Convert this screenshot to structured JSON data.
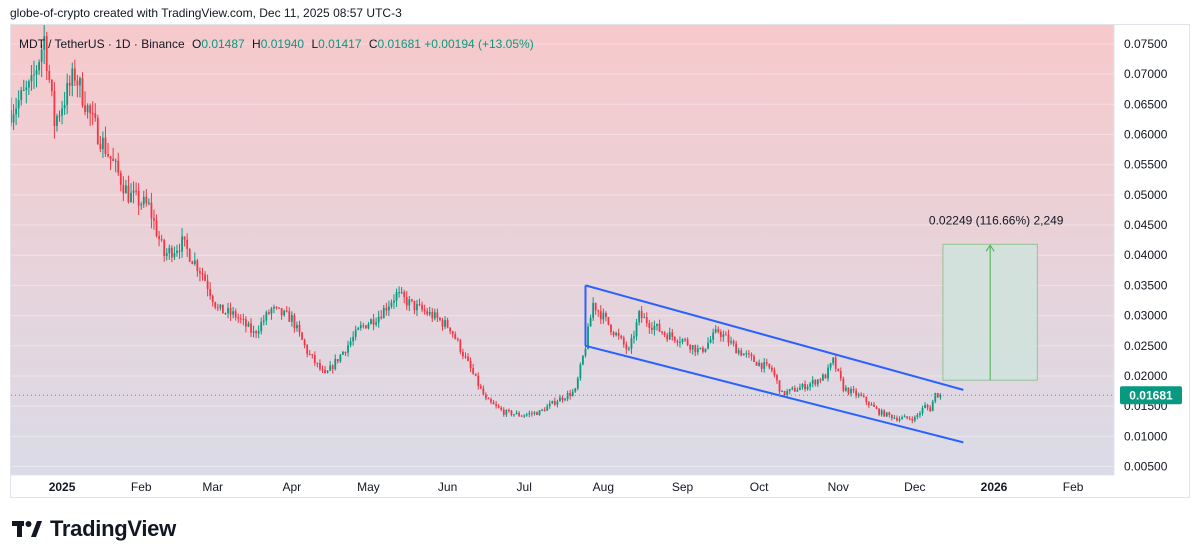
{
  "header": {
    "note": "globe-of-crypto created with TradingView.com, Dec 11, 2025 08:57 UTC-3"
  },
  "legend": {
    "symbol": "MDT / TetherUS · 1D · Binance",
    "o_label": "O",
    "o_value": "0.01487",
    "h_label": "H",
    "h_value": "0.01940",
    "l_label": "L",
    "l_value": "0.01417",
    "c_label": "C",
    "c_value": "0.01681",
    "change": "+0.00194 (+13.05%)"
  },
  "last_price_label": "0.01681",
  "measure_label": "0.02249 (116.66%) 2,249",
  "footer": {
    "brand": "TradingView"
  },
  "colors": {
    "up": "#089981",
    "down": "#f23645",
    "channel": "#2962ff",
    "target_fill": "#cfe3dc",
    "target_line": "#4caf50",
    "bg_top": "#f7c9cb",
    "bg_bottom": "#dadbe7"
  },
  "chart_data": {
    "type": "candlestick",
    "title": "MDT / TetherUS · 1D · Binance",
    "y_axis_ticks": [
      "0.07500",
      "0.07000",
      "0.06500",
      "0.06000",
      "0.05500",
      "0.05000",
      "0.04500",
      "0.04000",
      "0.03500",
      "0.03000",
      "0.02500",
      "0.02000",
      "0.01500",
      "0.01000",
      "0.00500"
    ],
    "ylim": [
      0.0036,
      0.0768
    ],
    "x_axis_ticks": [
      {
        "label": "2025",
        "date": "2025-01-01",
        "bold": true
      },
      {
        "label": "Feb",
        "date": "2025-02-01"
      },
      {
        "label": "Mar",
        "date": "2025-03-01"
      },
      {
        "label": "Apr",
        "date": "2025-04-01"
      },
      {
        "label": "May",
        "date": "2025-05-01"
      },
      {
        "label": "Jun",
        "date": "2025-06-01"
      },
      {
        "label": "Jul",
        "date": "2025-07-01"
      },
      {
        "label": "Aug",
        "date": "2025-08-01"
      },
      {
        "label": "Sep",
        "date": "2025-09-01"
      },
      {
        "label": "Oct",
        "date": "2025-10-01"
      },
      {
        "label": "Nov",
        "date": "2025-11-01"
      },
      {
        "label": "Dec",
        "date": "2025-12-01"
      },
      {
        "label": "2026",
        "date": "2026-01-01",
        "bold": true
      },
      {
        "label": "Feb",
        "date": "2026-02-01"
      }
    ],
    "x_range": [
      "2024-12-12",
      "2026-02-17"
    ],
    "price_path": [
      [
        "2024-12-12",
        0.064
      ],
      [
        "2024-12-20",
        0.068
      ],
      [
        "2024-12-25",
        0.076
      ],
      [
        "2024-12-29",
        0.062
      ],
      [
        "2025-01-06",
        0.07
      ],
      [
        "2025-01-13",
        0.062
      ],
      [
        "2025-01-20",
        0.056
      ],
      [
        "2025-01-27",
        0.05
      ],
      [
        "2025-02-04",
        0.048
      ],
      [
        "2025-02-10",
        0.04
      ],
      [
        "2025-02-17",
        0.042
      ],
      [
        "2025-02-25",
        0.037
      ],
      [
        "2025-03-03",
        0.031
      ],
      [
        "2025-03-10",
        0.03
      ],
      [
        "2025-03-17",
        0.027
      ],
      [
        "2025-03-24",
        0.031
      ],
      [
        "2025-04-01",
        0.0295
      ],
      [
        "2025-04-07",
        0.024
      ],
      [
        "2025-04-14",
        0.02
      ],
      [
        "2025-04-21",
        0.024
      ],
      [
        "2025-04-28",
        0.028
      ],
      [
        "2025-05-05",
        0.03
      ],
      [
        "2025-05-12",
        0.0335
      ],
      [
        "2025-05-19",
        0.0315
      ],
      [
        "2025-05-26",
        0.03
      ],
      [
        "2025-06-02",
        0.028
      ],
      [
        "2025-06-09",
        0.022
      ],
      [
        "2025-06-16",
        0.016
      ],
      [
        "2025-06-23",
        0.014
      ],
      [
        "2025-06-30",
        0.0135
      ],
      [
        "2025-07-07",
        0.014
      ],
      [
        "2025-07-14",
        0.016
      ],
      [
        "2025-07-21",
        0.0175
      ],
      [
        "2025-07-25",
        0.025
      ],
      [
        "2025-07-28",
        0.032
      ],
      [
        "2025-08-04",
        0.028
      ],
      [
        "2025-08-11",
        0.024
      ],
      [
        "2025-08-15",
        0.03
      ],
      [
        "2025-08-25",
        0.027
      ],
      [
        "2025-09-01",
        0.026
      ],
      [
        "2025-09-08",
        0.024
      ],
      [
        "2025-09-15",
        0.0275
      ],
      [
        "2025-09-22",
        0.0245
      ],
      [
        "2025-09-29",
        0.0225
      ],
      [
        "2025-10-06",
        0.021
      ],
      [
        "2025-10-10",
        0.017
      ],
      [
        "2025-10-20",
        0.0185
      ],
      [
        "2025-10-27",
        0.02
      ],
      [
        "2025-10-30",
        0.0225
      ],
      [
        "2025-11-03",
        0.018
      ],
      [
        "2025-11-10",
        0.0165
      ],
      [
        "2025-11-17",
        0.014
      ],
      [
        "2025-11-24",
        0.013
      ],
      [
        "2025-12-01",
        0.013
      ],
      [
        "2025-12-05",
        0.015
      ],
      [
        "2025-12-07",
        0.0145
      ],
      [
        "2025-12-09",
        0.017
      ],
      [
        "2025-12-11",
        0.0168
      ]
    ],
    "channel_upper": [
      [
        "2025-07-25",
        0.035
      ],
      [
        "2025-12-20",
        0.0177
      ]
    ],
    "channel_lower": [
      [
        "2025-07-25",
        0.025
      ],
      [
        "2025-12-20",
        0.009
      ]
    ],
    "target_box": {
      "x_start": "2025-12-12",
      "x_end": "2026-01-18",
      "y_low": 0.0193,
      "y_high": 0.0418
    },
    "last_price": 0.01681
  }
}
